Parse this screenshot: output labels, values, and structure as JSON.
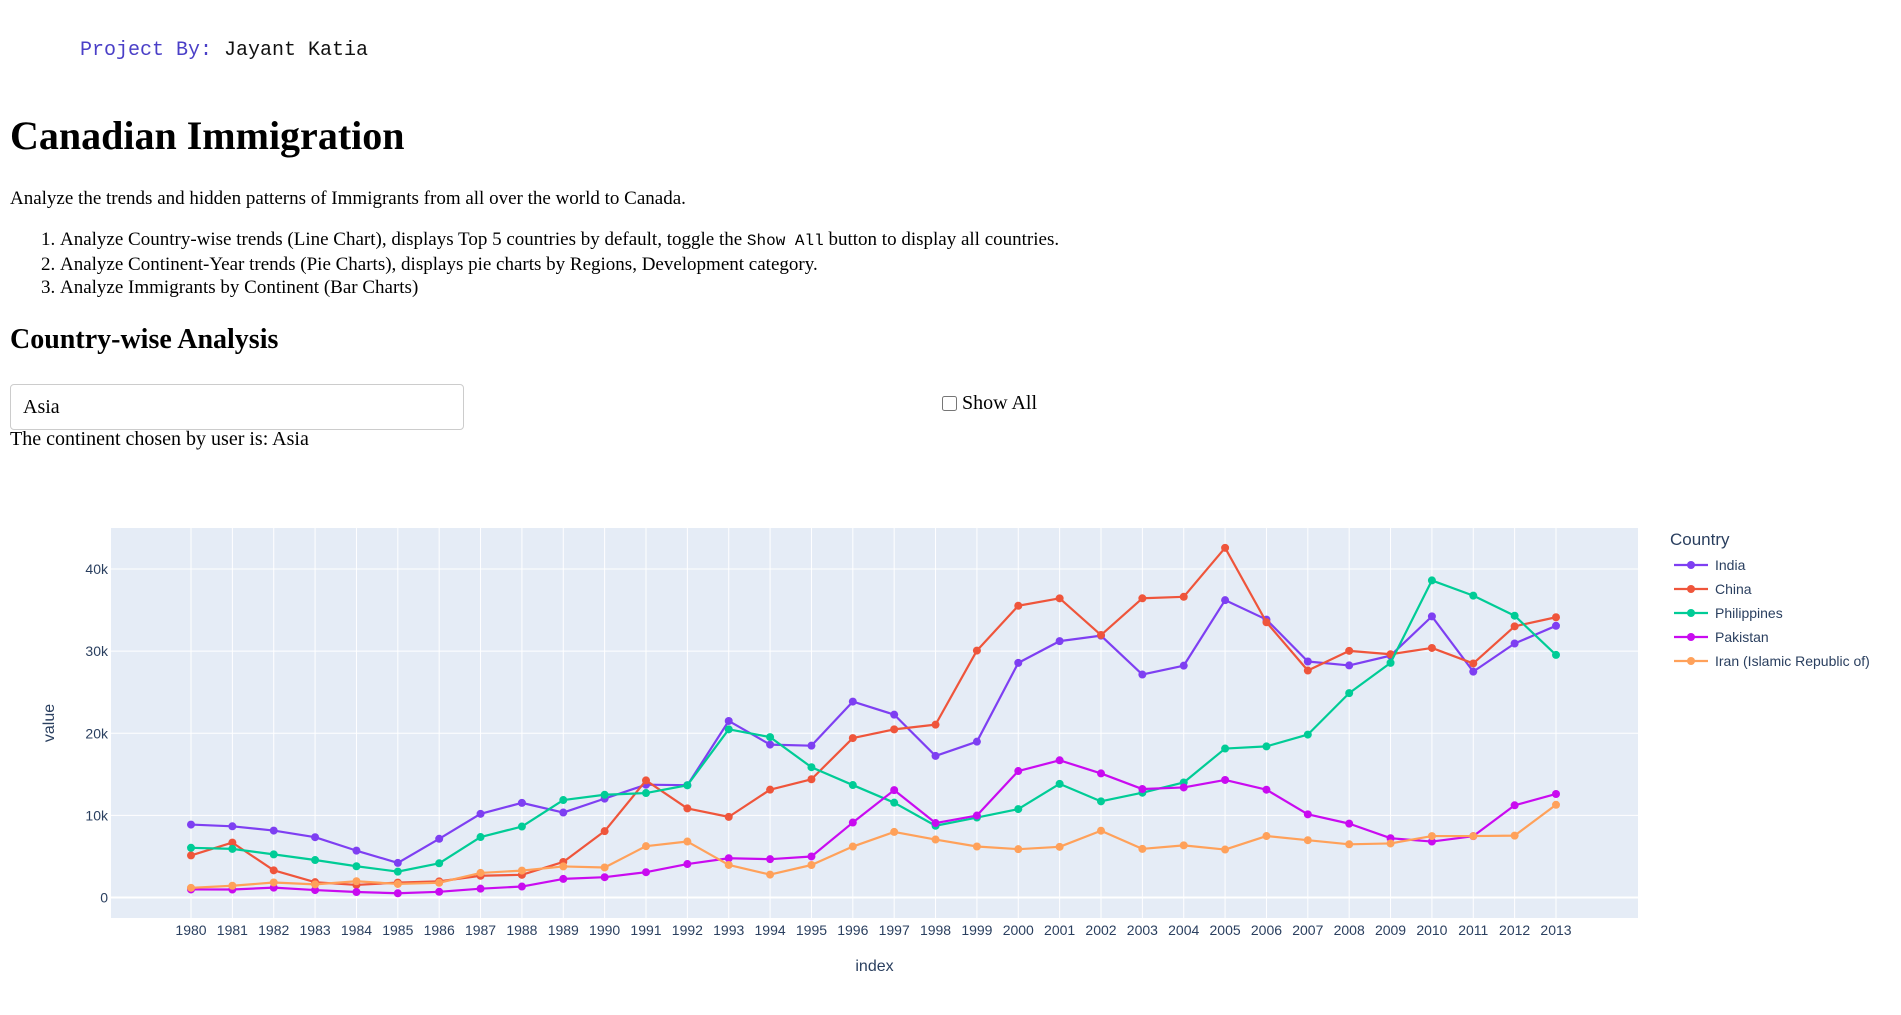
{
  "byline": {
    "label": "Project By: ",
    "name": "Jayant Katia"
  },
  "header": {
    "title": "Canadian Immigration",
    "intro": "Analyze the trends and hidden patterns of Immigrants from all over the world to Canada."
  },
  "steps": [
    {
      "before": "Analyze Country-wise trends (Line Chart), displays Top 5 countries by default, toggle the ",
      "code": "Show All",
      "after": " button to display all countries."
    },
    {
      "text": "Analyze Continent-Year trends (Pie Charts), displays pie charts by Regions, Development category."
    },
    {
      "text": "Analyze Immigrants by Continent (Bar Charts)"
    }
  ],
  "section": {
    "title": "Country-wise Analysis"
  },
  "controls": {
    "continent_value": "Asia",
    "show_all_label": "Show All",
    "show_all_checked": false,
    "chosen_text": "The continent chosen by user is: Asia"
  },
  "colors": {
    "plot_bg": "#e5ecf6",
    "grid": "#ffffff",
    "axis_text": "#2a3f5f"
  },
  "chart_data": {
    "type": "line",
    "title": "",
    "xlabel": "index",
    "ylabel": "value",
    "legend_title": "Country",
    "ylim": [
      -2500,
      45000
    ],
    "yticks": [
      0,
      10000,
      20000,
      30000,
      40000
    ],
    "ytick_labels": [
      "0",
      "10k",
      "20k",
      "30k",
      "40k"
    ],
    "x": [
      1980,
      1981,
      1982,
      1983,
      1984,
      1985,
      1986,
      1987,
      1988,
      1989,
      1990,
      1991,
      1992,
      1993,
      1994,
      1995,
      1996,
      1997,
      1998,
      1999,
      2000,
      2001,
      2002,
      2003,
      2004,
      2005,
      2006,
      2007,
      2008,
      2009,
      2010,
      2011,
      2012,
      2013
    ],
    "series": [
      {
        "name": "India",
        "color": "#7e3ff2",
        "values": [
          8880,
          8670,
          8147,
          7338,
          5704,
          4211,
          7150,
          10189,
          11522,
          10343,
          12041,
          13734,
          13673,
          21496,
          18620,
          18489,
          23859,
          22268,
          17241,
          18974,
          28572,
          31223,
          31889,
          27155,
          28235,
          36210,
          33848,
          28742,
          28261,
          29456,
          34235,
          27509,
          30933,
          33087
        ]
      },
      {
        "name": "China",
        "color": "#ef553b",
        "values": [
          5123,
          6682,
          3308,
          1863,
          1527,
          1816,
          1960,
          2643,
          2758,
          4323,
          8076,
          14255,
          10846,
          9817,
          13128,
          14398,
          19415,
          20475,
          21049,
          30069,
          35529,
          36434,
          31961,
          36439,
          36619,
          42584,
          33518,
          27642,
          30037,
          29622,
          30391,
          28502,
          33024,
          34129
        ]
      },
      {
        "name": "Philippines",
        "color": "#00cc96",
        "values": [
          6051,
          5921,
          5249,
          4562,
          3801,
          3150,
          4166,
          7360,
          8639,
          11865,
          12509,
          12718,
          13670,
          20479,
          19532,
          15864,
          13692,
          11549,
          8735,
          9734,
          10763,
          13836,
          11707,
          12758,
          14004,
          18139,
          18400,
          19837,
          24887,
          28573,
          38617,
          36765,
          34315,
          29544
        ]
      },
      {
        "name": "Pakistan",
        "color": "#c90bf0",
        "values": [
          978,
          972,
          1201,
          900,
          668,
          514,
          691,
          1072,
          1334,
          2261,
          2470,
          3079,
          4071,
          4777,
          4666,
          4994,
          9125,
          13073,
          9068,
          9979,
          15400,
          16708,
          15110,
          13205,
          13399,
          14314,
          13127,
          10124,
          8994,
          7217,
          6811,
          7468,
          11227,
          12603
        ]
      },
      {
        "name": "Iran (Islamic Republic of)",
        "color": "#ffa15a",
        "values": [
          1172,
          1429,
          1822,
          1592,
          1977,
          1648,
          1794,
          2989,
          3273,
          3781,
          3655,
          6250,
          6814,
          3959,
          2785,
          3956,
          6205,
          7982,
          7057,
          6208,
          5884,
          6169,
          8129,
          5918,
          6348,
          5837,
          7480,
          6974,
          6475,
          6580,
          7477,
          7479,
          7534,
          11291
        ]
      }
    ]
  }
}
